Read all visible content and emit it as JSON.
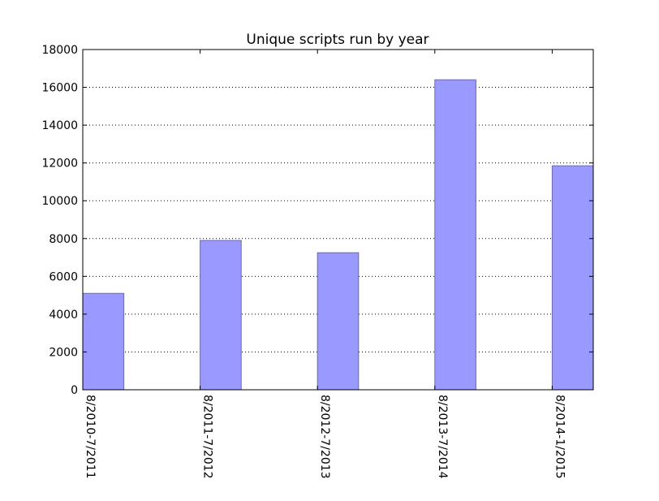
{
  "chart_data": {
    "type": "bar",
    "title": "Unique scripts run by year",
    "xlabel": "",
    "ylabel": "",
    "categories": [
      "8/2010-7/2011",
      "8/2011-7/2012",
      "8/2012-7/2013",
      "8/2013-7/2014",
      "8/2014-1/2015"
    ],
    "values": [
      5100,
      7900,
      7250,
      16400,
      11850
    ],
    "ylim": [
      0,
      18000
    ],
    "yticks": [
      "0",
      "2000",
      "4000",
      "6000",
      "8000",
      "10000",
      "12000",
      "14000",
      "16000",
      "18000"
    ],
    "grid": "horizontal dotted",
    "bar_color": "#9999ff",
    "bar_edge_color": "#6a6ab0"
  }
}
